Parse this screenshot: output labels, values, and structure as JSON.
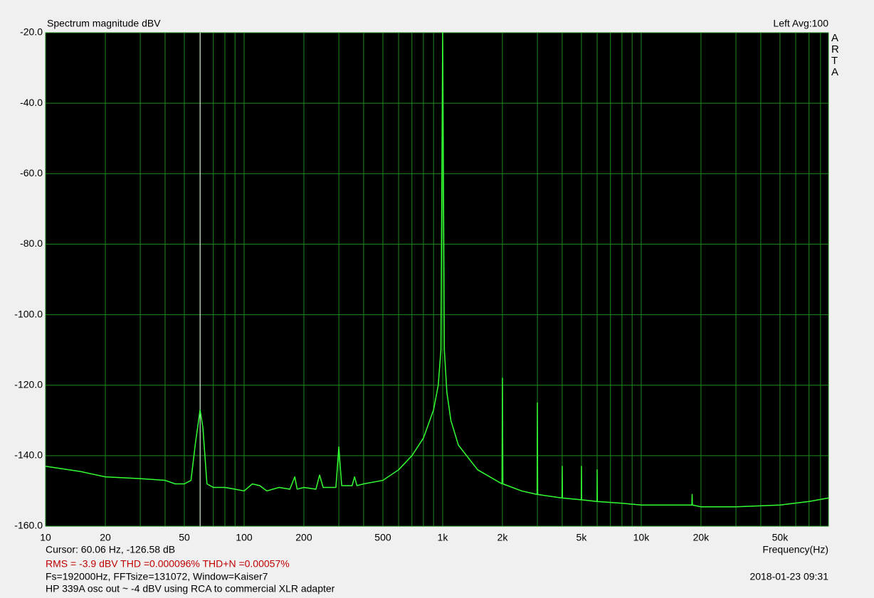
{
  "chart_data": {
    "type": "line",
    "title": "Spectrum magnitude dBV",
    "top_right": "Left  Avg:100",
    "side_label": "ARTA",
    "x_label": "Frequency(Hz)",
    "cursor": {
      "x": 60.06,
      "label": "Cursor: 60.06 Hz, -126.58 dB"
    },
    "stats": "RMS =   -3.9 dBV   THD =0.000096%   THD+N =0.00057%",
    "settings_text": "Fs=192000Hz, FFTsize=131072, Window=Kaiser7",
    "timestamp": "2018-01-23  09:31",
    "note": "HP 339A osc out ~ -4 dBV using RCA to commercial XLR adapter",
    "xscale": "log",
    "grid": true,
    "color": "#33ff33",
    "grid_color": "#1e8c1e",
    "cursor_color": "#ffffff",
    "xlim": [
      10,
      87700
    ],
    "ylim": [
      -160,
      -20
    ],
    "xticks": [
      10,
      20,
      50,
      100,
      200,
      500,
      {
        "value": 1000,
        "label": "1k"
      },
      {
        "value": 2000,
        "label": "2k"
      },
      {
        "value": 5000,
        "label": "5k"
      },
      {
        "value": 10000,
        "label": "10k"
      },
      {
        "value": 20000,
        "label": "20k"
      },
      {
        "value": 50000,
        "label": "50k"
      }
    ],
    "xminor": [
      30,
      40,
      60,
      70,
      80,
      90,
      300,
      400,
      600,
      700,
      800,
      900,
      3000,
      4000,
      6000,
      7000,
      8000,
      9000,
      30000,
      40000,
      60000,
      70000,
      80000
    ],
    "yticks": [
      {
        "value": -20,
        "label": "-20.0"
      },
      {
        "value": -40,
        "label": "-40.0"
      },
      {
        "value": -60,
        "label": "-60.0"
      },
      {
        "value": -80,
        "label": "-80.0"
      },
      {
        "value": -100,
        "label": "-100.0"
      },
      {
        "value": -120,
        "label": "-120.0"
      },
      {
        "value": -140,
        "label": "-140.0"
      },
      {
        "value": -160,
        "label": "-160.0"
      }
    ],
    "x": [
      10,
      15,
      20,
      30,
      40,
      45,
      50,
      54,
      57,
      60,
      62,
      65,
      70,
      80,
      90,
      100,
      110,
      120,
      130,
      150,
      170,
      180,
      185,
      200,
      230,
      240,
      250,
      290,
      300,
      310,
      350,
      360,
      370,
      400,
      500,
      600,
      700,
      800,
      900,
      950,
      980,
      1000,
      1020,
      1050,
      1100,
      1200,
      1500,
      1990,
      2000,
      2010,
      2500,
      2990,
      3000,
      3010,
      3990,
      4000,
      4010,
      4990,
      5000,
      5010,
      5990,
      6000,
      6010,
      8000,
      10000,
      15000,
      18000,
      18050,
      18100,
      20000,
      30000,
      50000,
      70000,
      87700
    ],
    "values": [
      -143,
      -144.5,
      -146,
      -146.5,
      -147,
      -148,
      -148,
      -147,
      -136,
      -127,
      -132,
      -148,
      -149,
      -149,
      -149.5,
      -150,
      -148,
      -148.5,
      -150,
      -149,
      -149.5,
      -146,
      -149.5,
      -149,
      -149.5,
      -145.5,
      -149,
      -149,
      -137.5,
      -148.5,
      -148.5,
      -146,
      -148.5,
      -148,
      -147,
      -144,
      -140,
      -135,
      -127,
      -120,
      -110,
      -20,
      -110,
      -122,
      -130,
      -137,
      -144,
      -148,
      -118,
      -148,
      -150,
      -151,
      -125,
      -151,
      -152,
      -143,
      -152,
      -152.5,
      -143,
      -152.5,
      -153,
      -144,
      -153,
      -153.5,
      -154,
      -154,
      -154,
      -151,
      -154,
      -154.5,
      -154.5,
      -154,
      -153,
      -152
    ]
  }
}
